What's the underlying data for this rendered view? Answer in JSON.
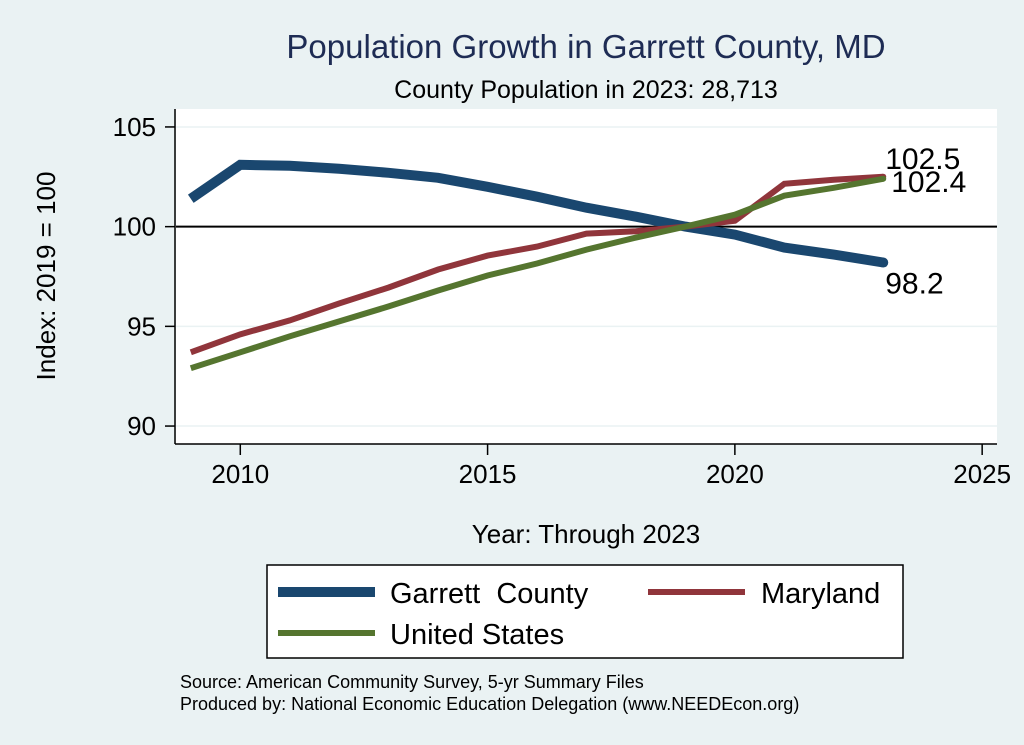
{
  "chart_data": {
    "type": "line",
    "title": "Population Growth in Garrett County, MD",
    "subtitle": "County Population in 2023: 28,713",
    "xlabel": "Year: Through 2023",
    "ylabel": "Index: 2019 = 100",
    "xlim": [
      2008.7,
      2025.3
    ],
    "ylim": [
      89.1,
      105.9
    ],
    "x_ticks": [
      2010,
      2015,
      2020,
      2025
    ],
    "x_tick_labels": [
      "2010",
      "2015",
      "2020",
      "2025"
    ],
    "y_ticks": [
      90,
      95,
      100,
      105
    ],
    "y_tick_labels": [
      "90",
      "95",
      "100",
      "105"
    ],
    "reference_line": 100,
    "grid": true,
    "legend_position": "bottom",
    "x": [
      2009,
      2010,
      2011,
      2012,
      2013,
      2014,
      2015,
      2016,
      2017,
      2018,
      2019,
      2020,
      2021,
      2022,
      2023
    ],
    "series": [
      {
        "name": "Garrett  County",
        "color": "#1a476f",
        "values": [
          101.4,
          103.1,
          103.05,
          102.9,
          102.7,
          102.45,
          102.0,
          101.5,
          100.95,
          100.5,
          100.0,
          99.6,
          98.95,
          98.6,
          98.2
        ],
        "end_label": "98.2"
      },
      {
        "name": "Maryland",
        "color": "#90353b",
        "values": [
          93.7,
          94.6,
          95.3,
          96.15,
          96.95,
          97.85,
          98.55,
          99.0,
          99.65,
          99.77,
          100.0,
          100.3,
          102.15,
          102.35,
          102.5
        ],
        "end_label": "102.5"
      },
      {
        "name": "United States",
        "color": "#55752f",
        "values": [
          92.9,
          93.7,
          94.5,
          95.25,
          96.0,
          96.8,
          97.55,
          98.15,
          98.85,
          99.45,
          100.0,
          100.6,
          101.55,
          101.95,
          102.4
        ],
        "end_label": "102.4"
      }
    ],
    "notes": [
      "Source: American Community Survey, 5-yr Summary Files",
      "Produced by: National Economic Education Delegation (www.NEEDEcon.org)"
    ]
  },
  "colors": {
    "background": "#eaf2f3",
    "plot_background": "#ffffff",
    "title": "#1e2c54",
    "gridline": "#eaf2f3"
  }
}
